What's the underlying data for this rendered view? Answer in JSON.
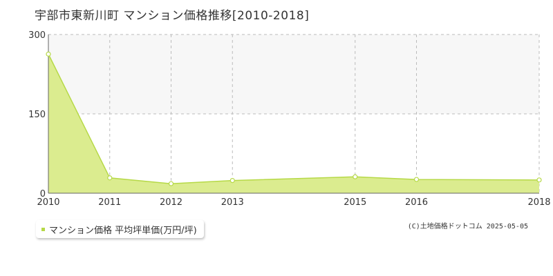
{
  "colors": {
    "area_fill": "#dbec8f",
    "line": "#b6d947",
    "plot_band": "#f7f7f7",
    "grid": "#bbbbbb",
    "axis": "#666666",
    "marker_fill": "#ffffff"
  },
  "chart_data": {
    "type": "area",
    "title": "宇部市東新川町 マンション価格推移[2010-2018]",
    "x": [
      2010,
      2011,
      2012,
      2013,
      2015,
      2016,
      2018
    ],
    "x_tick_labels": [
      "2010",
      "2011",
      "2012",
      "2013",
      "2015",
      "2016",
      "2018"
    ],
    "series": [
      {
        "name": "マンション価格 平均坪単価(万円/坪)",
        "values": [
          263,
          29,
          18,
          24,
          31,
          26,
          25
        ]
      }
    ],
    "ylim": [
      0,
      300
    ],
    "y_ticks": [
      0,
      150,
      300
    ],
    "y_tick_labels": [
      "0",
      "150",
      "300"
    ],
    "grid": true,
    "legend_position": "bottom-left"
  },
  "legend": {
    "label": "マンション価格 平均坪単価(万円/坪)"
  },
  "copyright": "(C)土地価格ドットコム 2025-05-05"
}
